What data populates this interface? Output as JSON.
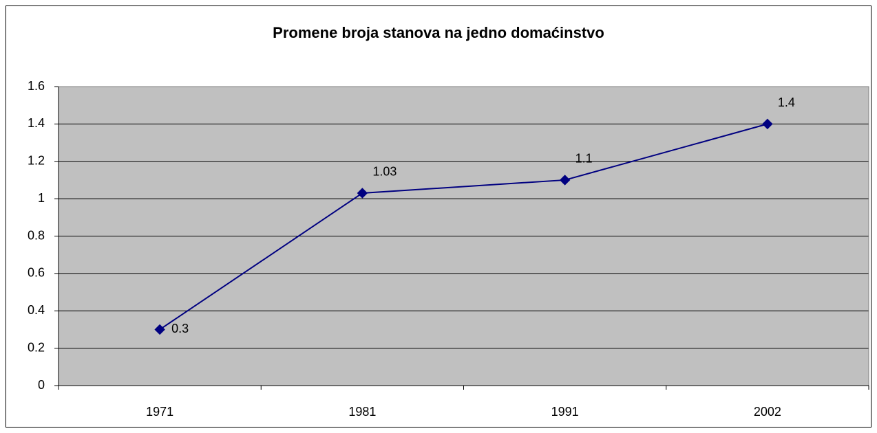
{
  "chart_data": {
    "type": "line",
    "title": "Promene broja stanova na jedno domaćinstvo",
    "categories": [
      "1971",
      "1981",
      "1991",
      "2002"
    ],
    "series": [
      {
        "color": "#000080",
        "values": [
          0.3,
          1.03,
          1.1,
          1.4
        ]
      }
    ],
    "ylim": [
      0,
      1.6
    ],
    "yticks": [
      0,
      0.2,
      0.4,
      0.6,
      0.8,
      1,
      1.2,
      1.4,
      1.6
    ],
    "grid": true,
    "plot_background": "#c0c0c0"
  }
}
